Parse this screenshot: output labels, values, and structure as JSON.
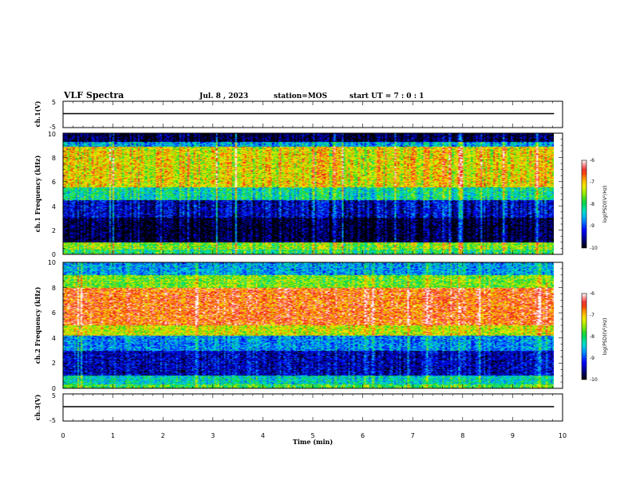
{
  "header": {
    "title": "VLF Spectra",
    "date": "Jul. 8 , 2023",
    "station": "station=MOS",
    "start_ut": "start UT = 7 : 0 : 1"
  },
  "chart_data": [
    {
      "type": "line",
      "panel": "ch1-waveform",
      "ylabel": "ch.1(V)",
      "ylim": [
        -5,
        5
      ],
      "yticks": [
        "5",
        "-5"
      ],
      "series": [
        {
          "x": [
            0,
            9.83
          ],
          "y": [
            0,
            0
          ]
        }
      ]
    },
    {
      "type": "heatmap",
      "panel": "ch1-spectrogram",
      "ylabel": "ch.1 Frequency (kHz)",
      "ylim": [
        0,
        10
      ],
      "xlim": [
        0,
        10
      ],
      "yticks": [
        "0",
        "2",
        "4",
        "6",
        "8",
        "10"
      ],
      "colorbar": {
        "label": "log(PSD)(V²/Hz)",
        "range": [
          -10,
          -6
        ],
        "ticks": [
          "-6",
          "-7",
          "-8",
          "-9",
          "-10"
        ]
      },
      "bands": [
        {
          "from": 0.0,
          "to": 0.4,
          "level": -8.0
        },
        {
          "from": 0.4,
          "to": 1.0,
          "level": -7.6
        },
        {
          "from": 1.0,
          "to": 3.0,
          "level": -9.9
        },
        {
          "from": 3.0,
          "to": 4.5,
          "level": -9.4
        },
        {
          "from": 4.5,
          "to": 5.5,
          "level": -8.2
        },
        {
          "from": 5.5,
          "to": 8.9,
          "level": -7.2
        },
        {
          "from": 8.9,
          "to": 9.3,
          "level": -8.6
        },
        {
          "from": 9.3,
          "to": 10.0,
          "level": -9.9
        }
      ]
    },
    {
      "type": "heatmap",
      "panel": "ch2-spectrogram",
      "ylabel": "ch.2 Frequency (kHz)",
      "ylim": [
        0,
        10
      ],
      "xlim": [
        0,
        10
      ],
      "yticks": [
        "0",
        "2",
        "4",
        "6",
        "8",
        "10"
      ],
      "colorbar": {
        "label": "log(PSD)(V²/Hz)",
        "range": [
          -10,
          -6
        ],
        "ticks": [
          "-6",
          "-7",
          "-8",
          "-9",
          "-10"
        ]
      },
      "bands": [
        {
          "from": 0.0,
          "to": 0.3,
          "level": -7.8
        },
        {
          "from": 0.3,
          "to": 1.0,
          "level": -8.3
        },
        {
          "from": 1.0,
          "to": 3.0,
          "level": -9.4
        },
        {
          "from": 3.0,
          "to": 4.2,
          "level": -8.7
        },
        {
          "from": 4.2,
          "to": 5.0,
          "level": -7.3
        },
        {
          "from": 5.0,
          "to": 8.0,
          "level": -6.6
        },
        {
          "from": 8.0,
          "to": 9.0,
          "level": -7.6
        },
        {
          "from": 9.0,
          "to": 10.0,
          "level": -8.6
        }
      ]
    },
    {
      "type": "line",
      "panel": "ch3-waveform",
      "ylabel": "ch.3(V)",
      "ylim": [
        -5,
        5
      ],
      "yticks": [
        "5",
        "-5"
      ],
      "series": [
        {
          "x": [
            0,
            9.83
          ],
          "y": [
            0,
            0
          ]
        }
      ]
    }
  ],
  "x_axis": {
    "label": "Time (min)",
    "ticks": [
      "0",
      "1",
      "2",
      "3",
      "4",
      "5",
      "6",
      "7",
      "8",
      "9",
      "10"
    ]
  }
}
